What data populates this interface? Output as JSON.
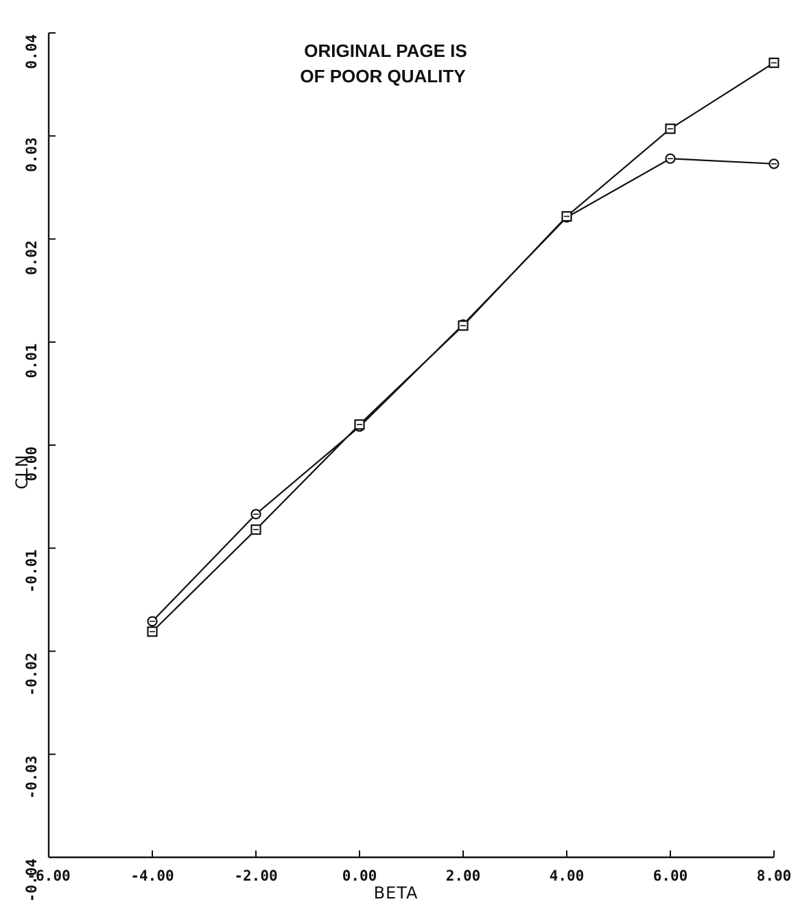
{
  "chart_data": {
    "type": "line",
    "title": "",
    "xlabel": "BETA",
    "ylabel": "CLN",
    "xlim": [
      -6,
      8
    ],
    "ylim": [
      -0.04,
      0.04
    ],
    "grid": false,
    "legend": "none",
    "x_ticks": [
      -6,
      -4,
      -2,
      0,
      2,
      4,
      6,
      8
    ],
    "x_tick_labels": [
      "-6.00",
      "-4.00",
      "-2.00",
      "0.00",
      "2.00",
      "4.00",
      "6.00",
      "8.00"
    ],
    "y_ticks": [
      -0.04,
      -0.03,
      -0.02,
      -0.01,
      0.0,
      0.01,
      0.02,
      0.03,
      0.04
    ],
    "y_tick_labels": [
      "-0.04",
      "-0.03",
      "-0.02",
      "-0.01",
      "0.00",
      "0.01",
      "0.02",
      "0.03",
      "0.04"
    ],
    "annotations": [
      "ORIGINAL PAGE IS",
      "OF POOR QUALITY"
    ],
    "series": [
      {
        "marker": "circle",
        "x": [
          -4,
          -2,
          0,
          2,
          4,
          6,
          8
        ],
        "y": [
          -0.0171,
          -0.0067,
          0.0018,
          0.0117,
          0.0221,
          0.0278,
          0.0273
        ]
      },
      {
        "marker": "square",
        "x": [
          -4,
          -2,
          0,
          2,
          4,
          6,
          8
        ],
        "y": [
          -0.0181,
          -0.0082,
          0.002,
          0.0116,
          0.0222,
          0.0307,
          0.0371
        ]
      }
    ],
    "colors": {
      "line": "#111111",
      "background": "#ffffff"
    }
  }
}
